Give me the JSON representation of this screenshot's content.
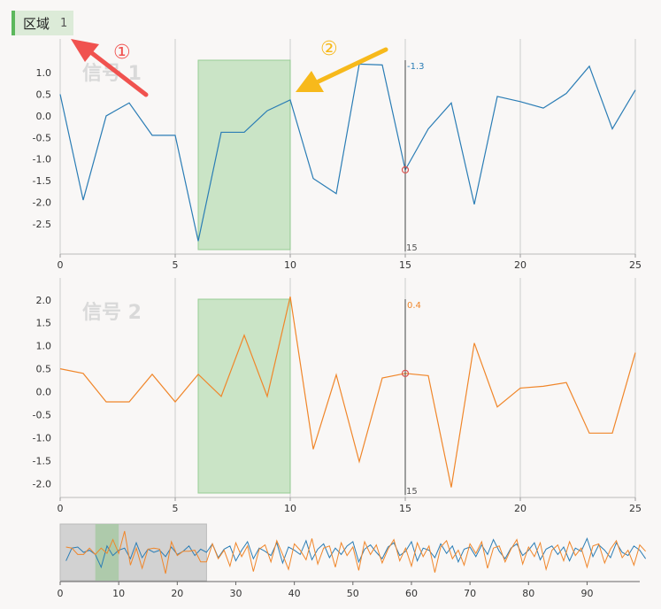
{
  "badge": {
    "label": "区域",
    "count": "1"
  },
  "annotations": [
    {
      "label": "①",
      "color": "#f0524f"
    },
    {
      "label": "②",
      "color": "#f7b91b"
    }
  ],
  "colors": {
    "series1": "#2b7db5",
    "series2": "#f0862a",
    "selection": "#c5e3c1",
    "selection_border": "#8cc98a",
    "cursor": "#444444",
    "marker": "#d9534f",
    "grid": "#cccccc"
  },
  "cursor": {
    "x": 15,
    "labels": [
      "-1.3",
      "0.4"
    ],
    "bottom_label": "15"
  },
  "selection": {
    "x0": 6,
    "x1": 10
  },
  "chart_data": [
    {
      "type": "line",
      "title": "信号 1",
      "xlim": [
        0,
        25
      ],
      "ylim": [
        -3.2,
        1.7
      ],
      "x_ticks": [
        "0",
        "5",
        "10",
        "15",
        "20",
        "25"
      ],
      "y_ticks": [
        "1.0",
        "0.5",
        "0.0",
        "-0.5",
        "-1.0",
        "-1.5",
        "-2.0",
        "-2.5"
      ],
      "x": [
        0,
        1,
        2,
        3,
        4,
        5,
        6,
        7,
        8,
        9,
        10,
        11,
        12,
        13,
        14,
        15,
        16,
        17,
        18,
        19,
        20,
        21,
        22,
        23,
        24,
        25
      ],
      "series": [
        {
          "values": [
            0.5,
            -1.95,
            0.0,
            0.3,
            -0.45,
            -0.45,
            -2.9,
            -0.38,
            -0.38,
            0.12,
            0.37,
            -1.45,
            -1.8,
            1.2,
            1.18,
            -1.25,
            -0.3,
            0.3,
            -2.05,
            0.45,
            0.33,
            0.18,
            0.52,
            1.15,
            -0.3,
            0.6
          ]
        }
      ]
    },
    {
      "type": "line",
      "title": "信号 2",
      "xlim": [
        0,
        25
      ],
      "ylim": [
        -2.3,
        2.4
      ],
      "x_ticks": [
        "0",
        "5",
        "10",
        "15",
        "20",
        "25"
      ],
      "y_ticks": [
        "2.0",
        "1.5",
        "1.0",
        "0.5",
        "0.0",
        "-0.5",
        "-1.0",
        "-1.5",
        "-2.0"
      ],
      "x": [
        0,
        1,
        2,
        3,
        4,
        5,
        6,
        7,
        8,
        9,
        10,
        11,
        12,
        13,
        14,
        15,
        16,
        17,
        18,
        19,
        20,
        21,
        22,
        23,
        24,
        25
      ],
      "series": [
        {
          "values": [
            0.5,
            0.4,
            -0.22,
            -0.22,
            0.38,
            -0.22,
            0.38,
            -0.1,
            1.23,
            -0.1,
            2.07,
            -1.25,
            0.37,
            -1.52,
            0.3,
            0.4,
            0.35,
            -2.08,
            1.06,
            -0.33,
            0.08,
            0.12,
            0.2,
            -0.9,
            -0.9,
            0.85
          ]
        }
      ]
    },
    {
      "type": "line",
      "title": "",
      "xlim": [
        0,
        99
      ],
      "x_ticks": [
        "0",
        "10",
        "20",
        "30",
        "40",
        "50",
        "60",
        "70",
        "80",
        "90"
      ],
      "window": [
        0,
        25
      ],
      "series": [
        {
          "values": [
            -0.8,
            0.4,
            0.5,
            0.0,
            0.2,
            -0.2,
            -1.4,
            0.6,
            -0.3,
            0.2,
            0.4,
            -0.6,
            0.9,
            -0.5,
            0.3,
            0.0,
            0.2,
            -0.4,
            0.5,
            -0.2,
            0.1,
            0.6,
            -0.3,
            0.3,
            0.0,
            0.8,
            -0.5,
            0.3,
            0.6,
            -0.8,
            0.2,
            1.0,
            -0.6,
            0.4,
            0.1,
            -0.3,
            0.9,
            -1.0,
            0.5,
            0.2,
            -0.2,
            1.1,
            -0.7,
            0.3,
            0.8,
            -0.5,
            0.4,
            -0.2,
            0.6,
            1.0,
            -0.9,
            0.3,
            0.7,
            0.0,
            -0.6,
            0.5,
            0.9,
            -0.3,
            0.1,
            1.0,
            -0.8,
            0.4,
            0.2,
            -0.5,
            0.8,
            -0.1,
            0.6,
            -0.9,
            0.3,
            0.5,
            -0.4,
            0.7,
            -0.2,
            1.2,
            0.1,
            -0.6,
            0.4,
            0.8,
            -0.3,
            0.2,
            0.9,
            -0.7,
            0.3,
            0.6,
            -0.2,
            0.5,
            -0.8,
            0.4,
            0.1,
            1.3,
            -0.4,
            0.7,
            0.2,
            -0.5,
            0.9,
            0.0,
            -0.3,
            0.6,
            0.2,
            -0.6
          ]
        },
        {
          "values": [
            0.5,
            0.4,
            -0.2,
            -0.2,
            0.4,
            -0.2,
            0.4,
            -0.1,
            1.2,
            -0.1,
            2.0,
            -1.2,
            0.4,
            -1.5,
            0.3,
            0.4,
            0.3,
            -2.0,
            1.0,
            -0.3,
            0.1,
            0.1,
            0.2,
            -0.9,
            -0.9,
            0.8,
            -0.6,
            0.2,
            -1.3,
            0.9,
            -0.4,
            0.6,
            -1.8,
            0.3,
            0.7,
            -0.9,
            1.1,
            -0.2,
            -1.6,
            0.8,
            0.2,
            -0.7,
            1.3,
            -1.1,
            0.4,
            0.6,
            -1.4,
            0.9,
            -0.3,
            0.5,
            -1.7,
            1.0,
            -0.2,
            0.7,
            -1.0,
            0.3,
            1.2,
            -0.8,
            0.4,
            -1.3,
            0.9,
            -0.4,
            0.6,
            -1.9,
            0.5,
            1.1,
            -0.6,
            0.2,
            -1.2,
            0.8,
            -0.1,
            1.0,
            -1.5,
            0.4,
            0.6,
            -0.9,
            0.3,
            1.2,
            -1.1,
            0.5,
            -0.4,
            0.9,
            -1.6,
            0.2,
            0.7,
            -0.8,
            1.0,
            -0.3,
            0.4,
            -1.4,
            0.6,
            0.8,
            -1.0,
            0.3,
            1.1,
            -0.5,
            0.2,
            -1.2,
            0.7,
            0.1
          ]
        }
      ]
    }
  ]
}
